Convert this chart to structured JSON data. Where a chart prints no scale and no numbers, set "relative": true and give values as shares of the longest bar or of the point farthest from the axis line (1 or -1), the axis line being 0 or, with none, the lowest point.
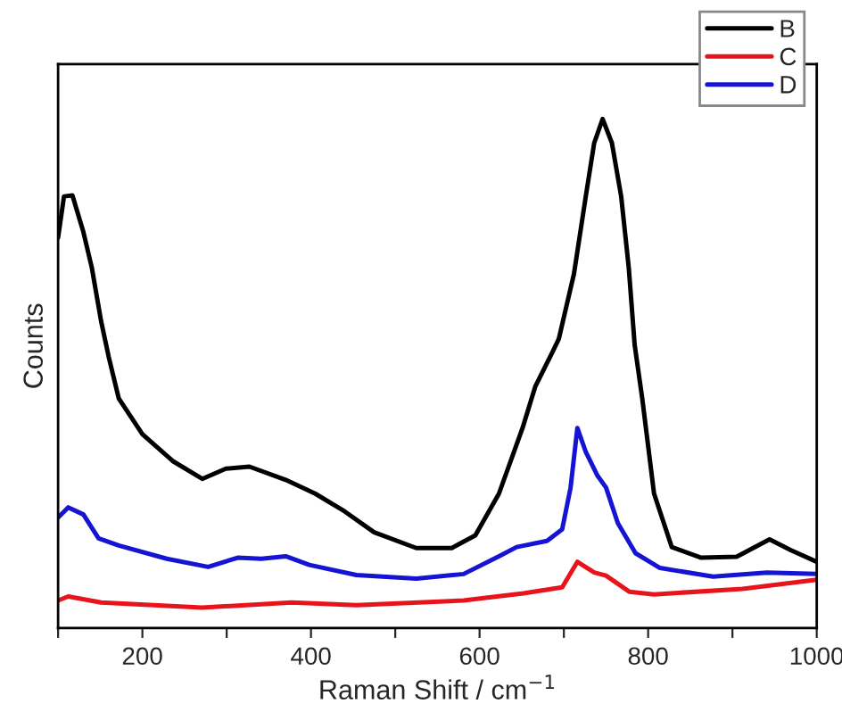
{
  "chart_data": {
    "type": "line",
    "relative": true,
    "xlabel": "Raman Shift / cm$^{−1}$",
    "ylabel": "Counts",
    "xlim": [
      100,
      1000
    ],
    "xticks": [
      {
        "value": 100,
        "label": null
      },
      200,
      {
        "value": 300,
        "label": null
      },
      400,
      {
        "value": 500,
        "label": null
      },
      600,
      {
        "value": 700,
        "label": null
      },
      800,
      {
        "value": 900,
        "label": null
      },
      1000
    ],
    "legend": "top right",
    "grid": false,
    "line_style": "solid",
    "marker": "none",
    "series": [
      {
        "name": "B",
        "color": "#000000",
        "x": [
          100,
          107,
          117,
          130,
          140,
          151,
          160,
          172,
          200,
          236,
          271,
          299,
          327,
          370,
          405,
          440,
          475,
          525,
          567,
          595,
          623,
          651,
          666,
          687,
          694,
          712,
          726,
          736,
          746,
          757,
          768,
          777,
          784,
          793,
          807,
          828,
          863,
          905,
          944,
          969,
          1000
        ],
        "values": [
          0.767,
          0.848,
          0.85,
          0.778,
          0.708,
          0.603,
          0.533,
          0.451,
          0.381,
          0.328,
          0.293,
          0.313,
          0.317,
          0.291,
          0.264,
          0.229,
          0.188,
          0.157,
          0.157,
          0.182,
          0.264,
          0.393,
          0.474,
          0.544,
          0.568,
          0.696,
          0.848,
          0.953,
          1.0,
          0.953,
          0.848,
          0.708,
          0.556,
          0.451,
          0.264,
          0.159,
          0.138,
          0.14,
          0.174,
          0.153,
          0.13
        ]
      },
      {
        "name": "C",
        "color": "#e8141c",
        "x": [
          100,
          112,
          151,
          271,
          377,
          454,
          581,
          652,
          698,
          716,
          736,
          750,
          778,
          807,
          912,
          1000
        ],
        "values": [
          0.054,
          0.062,
          0.05,
          0.04,
          0.05,
          0.045,
          0.054,
          0.068,
          0.08,
          0.13,
          0.109,
          0.103,
          0.071,
          0.066,
          0.077,
          0.095
        ]
      },
      {
        "name": "D",
        "color": "#1414d2",
        "x": [
          100,
          112,
          130,
          148,
          172,
          229,
          278,
          313,
          341,
          370,
          398,
          454,
          525,
          581,
          623,
          644,
          680,
          698,
          708,
          716,
          726,
          740,
          750,
          764,
          785,
          814,
          877,
          941,
          1000
        ],
        "values": [
          0.217,
          0.237,
          0.223,
          0.176,
          0.162,
          0.136,
          0.12,
          0.138,
          0.136,
          0.141,
          0.124,
          0.104,
          0.097,
          0.106,
          0.141,
          0.159,
          0.171,
          0.194,
          0.276,
          0.393,
          0.346,
          0.299,
          0.276,
          0.206,
          0.147,
          0.118,
          0.101,
          0.109,
          0.106
        ]
      }
    ]
  }
}
